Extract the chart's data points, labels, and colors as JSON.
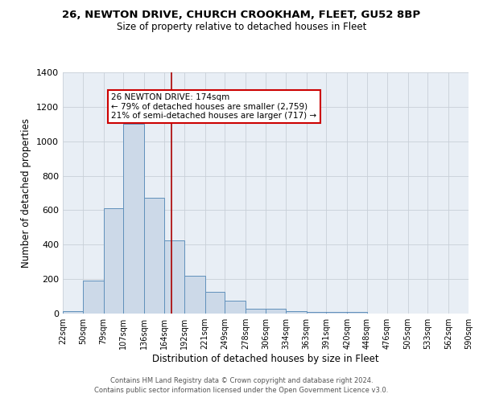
{
  "title": "26, NEWTON DRIVE, CHURCH CROOKHAM, FLEET, GU52 8BP",
  "subtitle": "Size of property relative to detached houses in Fleet",
  "xlabel": "Distribution of detached houses by size in Fleet",
  "ylabel": "Number of detached properties",
  "bin_edges": [
    22,
    50,
    79,
    107,
    136,
    164,
    192,
    221,
    249,
    278,
    306,
    334,
    363,
    391,
    420,
    448,
    476,
    505,
    533,
    562,
    590
  ],
  "bin_counts": [
    15,
    190,
    610,
    1100,
    670,
    425,
    220,
    125,
    75,
    30,
    28,
    15,
    10,
    8,
    10,
    0,
    0,
    0,
    0,
    0
  ],
  "red_line_x": 174,
  "annotation_text": "26 NEWTON DRIVE: 174sqm\n← 79% of detached houses are smaller (2,759)\n21% of semi-detached houses are larger (717) →",
  "bar_facecolor": "#ccd9e8",
  "bar_edgecolor": "#6090bb",
  "grid_color": "#c8cfd8",
  "bg_color": "#e8eef5",
  "annotation_box_edgecolor": "#cc0000",
  "red_line_color": "#aa0000",
  "ylim": [
    0,
    1400
  ],
  "yticks": [
    0,
    200,
    400,
    600,
    800,
    1000,
    1200,
    1400
  ],
  "tick_labels": [
    "22sqm",
    "50sqm",
    "79sqm",
    "107sqm",
    "136sqm",
    "164sqm",
    "192sqm",
    "221sqm",
    "249sqm",
    "278sqm",
    "306sqm",
    "334sqm",
    "363sqm",
    "391sqm",
    "420sqm",
    "448sqm",
    "476sqm",
    "505sqm",
    "533sqm",
    "562sqm",
    "590sqm"
  ],
  "footer_line1": "Contains HM Land Registry data © Crown copyright and database right 2024.",
  "footer_line2": "Contains public sector information licensed under the Open Government Licence v3.0."
}
